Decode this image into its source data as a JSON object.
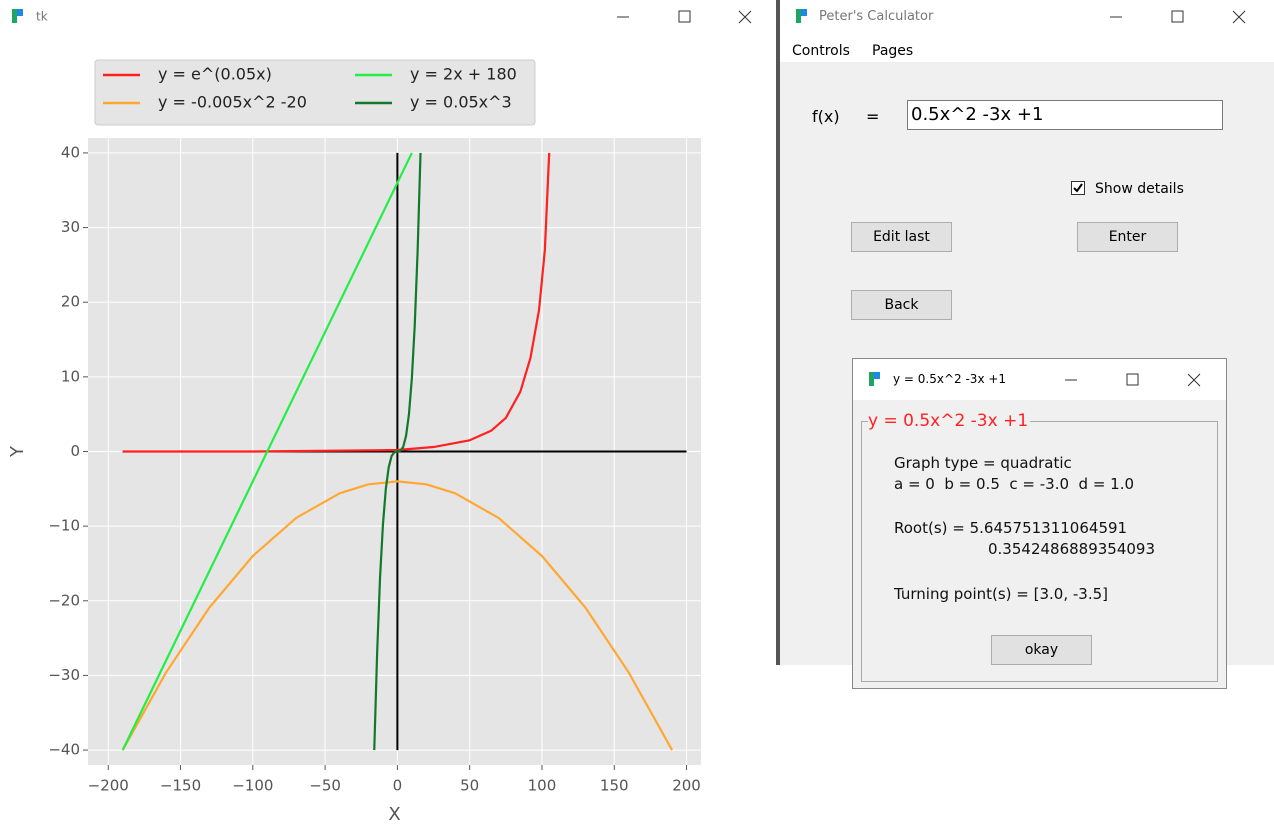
{
  "plot_window": {
    "title": "tk"
  },
  "chart_data": {
    "type": "line",
    "xlabel": "X",
    "ylabel": "Y",
    "xlim": [
      -214,
      210
    ],
    "ylim": [
      -42,
      42
    ],
    "xticks": [
      {
        "value": -200,
        "label": "−200"
      },
      {
        "value": -150,
        "label": "−150"
      },
      {
        "value": -100,
        "label": "−100"
      },
      {
        "value": -50,
        "label": "−50"
      },
      0,
      50,
      100,
      150,
      200
    ],
    "yticks": [
      {
        "value": -40,
        "label": "−40"
      },
      {
        "value": -30,
        "label": "−30"
      },
      {
        "value": -20,
        "label": "−20"
      },
      {
        "value": -10,
        "label": "−10"
      },
      0,
      10,
      20,
      30,
      40
    ],
    "grid": true,
    "legend": "top-left",
    "series": [
      {
        "name": "y = e^(0.05x)",
        "color": "#ff2020",
        "x": [
          -190,
          -100,
          0,
          25,
          50,
          65,
          75,
          85,
          92,
          98,
          102,
          105
        ],
        "values": [
          0,
          0,
          0.2,
          0.6,
          1.5,
          2.8,
          4.5,
          8,
          12.5,
          19,
          27,
          40
        ]
      },
      {
        "name": "y = -0.005x^2 -20",
        "color": "#ffa733",
        "x": [
          -190,
          -160,
          -130,
          -100,
          -70,
          -40,
          -20,
          0,
          20,
          40,
          70,
          100,
          130,
          160,
          190
        ],
        "values": [
          -40,
          -29.6,
          -20.9,
          -14,
          -8.9,
          -5.6,
          -4.4,
          -4,
          -4.4,
          -5.6,
          -8.9,
          -14,
          -20.9,
          -29.6,
          -40
        ]
      },
      {
        "name": "y = 2x + 180",
        "color": "#22ee44",
        "x": [
          -190,
          10
        ],
        "values": [
          -40,
          40
        ]
      },
      {
        "name": "y = 0.05x^3",
        "color": "#117a2a",
        "x": [
          -16,
          -14,
          -12,
          -10,
          -8,
          -6,
          -4,
          -2,
          0,
          2,
          4,
          6,
          8,
          10,
          12,
          14,
          16
        ],
        "values": [
          -40,
          -26.9,
          -16.9,
          -9.8,
          -5,
          -2.1,
          -0.6,
          -0.1,
          0,
          0.1,
          0.6,
          2.1,
          5,
          9.8,
          16.9,
          26.9,
          40
        ]
      }
    ]
  },
  "calculator": {
    "title": "Peter's Calculator",
    "menu": [
      "Controls",
      "Pages"
    ],
    "function_label": "f(x)",
    "equals": "=",
    "input": "0.5x^2 -3x +1",
    "checkbox": "Show details",
    "buttons": [
      "Edit last",
      "Enter",
      "Back"
    ]
  },
  "dialog": {
    "title": "y = 0.5x^2 -3x +1",
    "group_label": "y = 0.5x^2 -3x +1",
    "lines": [
      "Graph type = quadratic",
      "a = 0  b = 0.5  c = -3.0  d = 1.0",
      "Root(s) = 5.645751311064591",
      "0.3542486889354093",
      "Turning point(s) = [3.0, -3.5]"
    ],
    "button": "okay"
  }
}
